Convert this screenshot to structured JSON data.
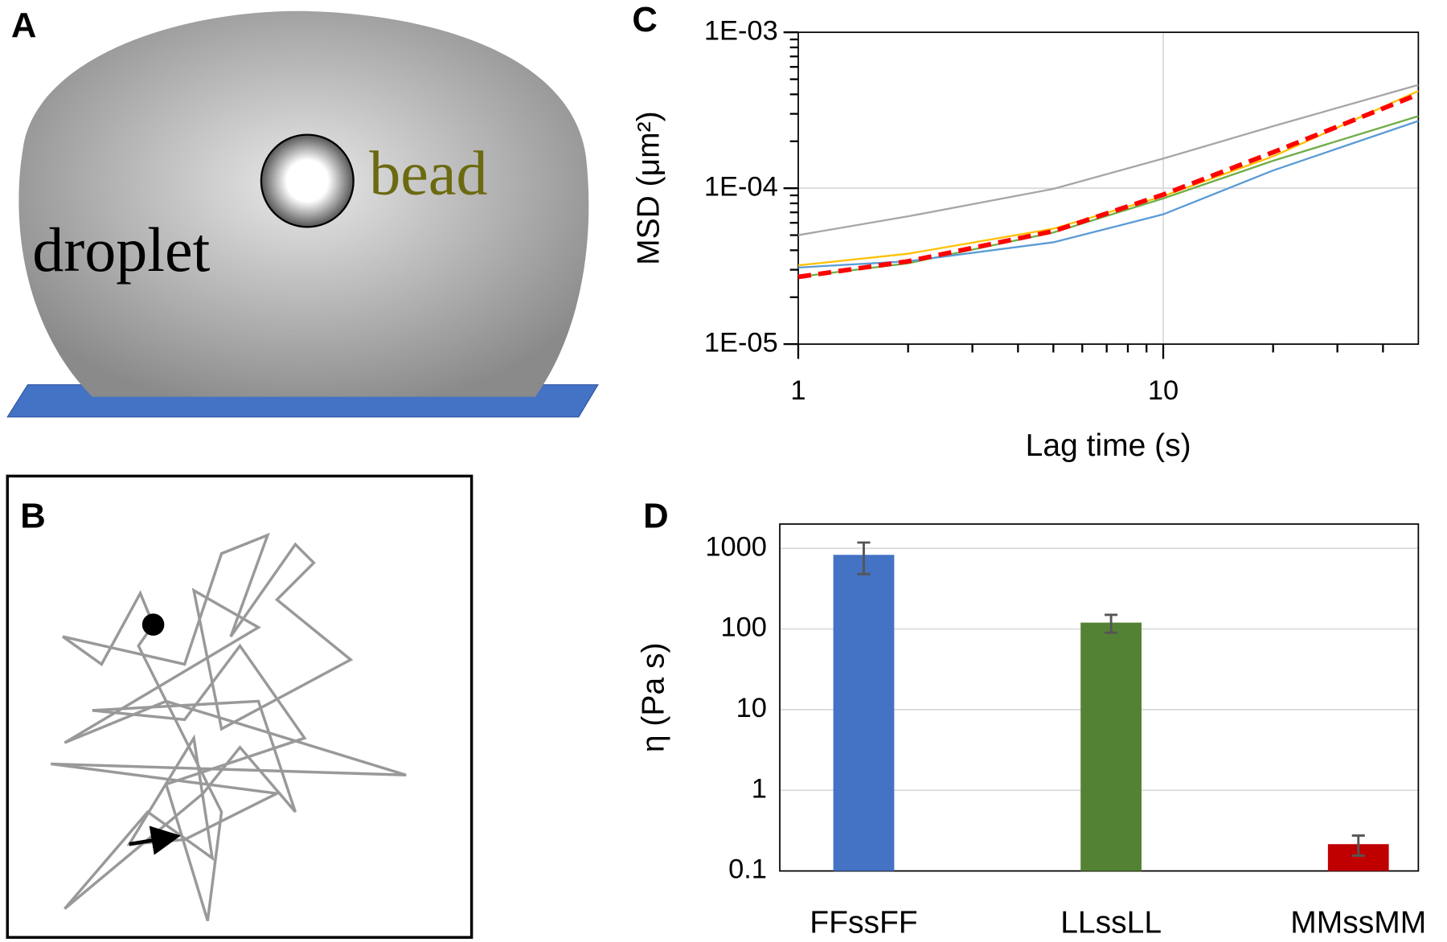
{
  "diagram": {
    "panel_labels": [
      "A",
      "B",
      "C",
      "D"
    ],
    "droplet_label": "droplet",
    "bead_label": "bead"
  },
  "chart_data": [
    {
      "type": "line",
      "x_label": "Lag time  (s)",
      "y_label": "MSD (μm²)",
      "log_x": true,
      "log_y": true,
      "grid": true,
      "x": [
        1,
        2,
        5,
        10,
        20,
        50
      ],
      "series": [
        {
          "color": "#a6a6a6",
          "values": [
            5e-05,
            6.6e-05,
            9.9e-05,
            0.000155,
            0.00025,
            0.00046
          ]
        },
        {
          "color": "#ffc000",
          "values": [
            3.2e-05,
            3.8e-05,
            5.5e-05,
            8.9e-05,
            0.00016,
            0.00042
          ]
        },
        {
          "color": "#70ad47",
          "values": [
            2.7e-05,
            3.3e-05,
            5.2e-05,
            8.6e-05,
            0.00015,
            0.00029
          ]
        },
        {
          "color": "#5b9bd5",
          "values": [
            3.1e-05,
            3.4e-05,
            4.5e-05,
            6.8e-05,
            0.00013,
            0.00027
          ]
        },
        {
          "color": "#ff0000",
          "line_style": "dashed",
          "values": [
            2.7e-05,
            3.4e-05,
            5.3e-05,
            9.1e-05,
            0.00017,
            0.0004
          ]
        }
      ],
      "xlim": [
        1,
        50
      ],
      "xticks": [
        1,
        10
      ],
      "x_minor_ticks": [
        2,
        3,
        4,
        5,
        6,
        7,
        8,
        9,
        20,
        30,
        40
      ],
      "ylim": [
        1e-05,
        0.001
      ],
      "yticks": [
        {
          "value": 1e-05,
          "label": "1E-05"
        },
        {
          "value": 0.0001,
          "label": "1E-04"
        },
        {
          "value": 0.001,
          "label": "1E-03"
        }
      ],
      "y_minor_ticks": [
        2e-05,
        3e-05,
        4e-05,
        5e-05,
        6e-05,
        7e-05,
        8e-05,
        9e-05,
        0.0002,
        0.0003,
        0.0004,
        0.0005,
        0.0006,
        0.0007,
        0.0008,
        0.0009
      ]
    },
    {
      "type": "bar",
      "y_label": "η (Pa s)",
      "log_y": true,
      "grid": true,
      "categories": [
        "FFssFF",
        "LLssLL",
        "MMssMM"
      ],
      "values": [
        830,
        120,
        0.215
      ],
      "errors": [
        350,
        30,
        0.06
      ],
      "colors": [
        "#4472c4",
        "#548235",
        "#c00000"
      ],
      "ylim": [
        0.1,
        2000
      ],
      "yticks": [
        0.1,
        1,
        10,
        100,
        1000
      ]
    }
  ]
}
